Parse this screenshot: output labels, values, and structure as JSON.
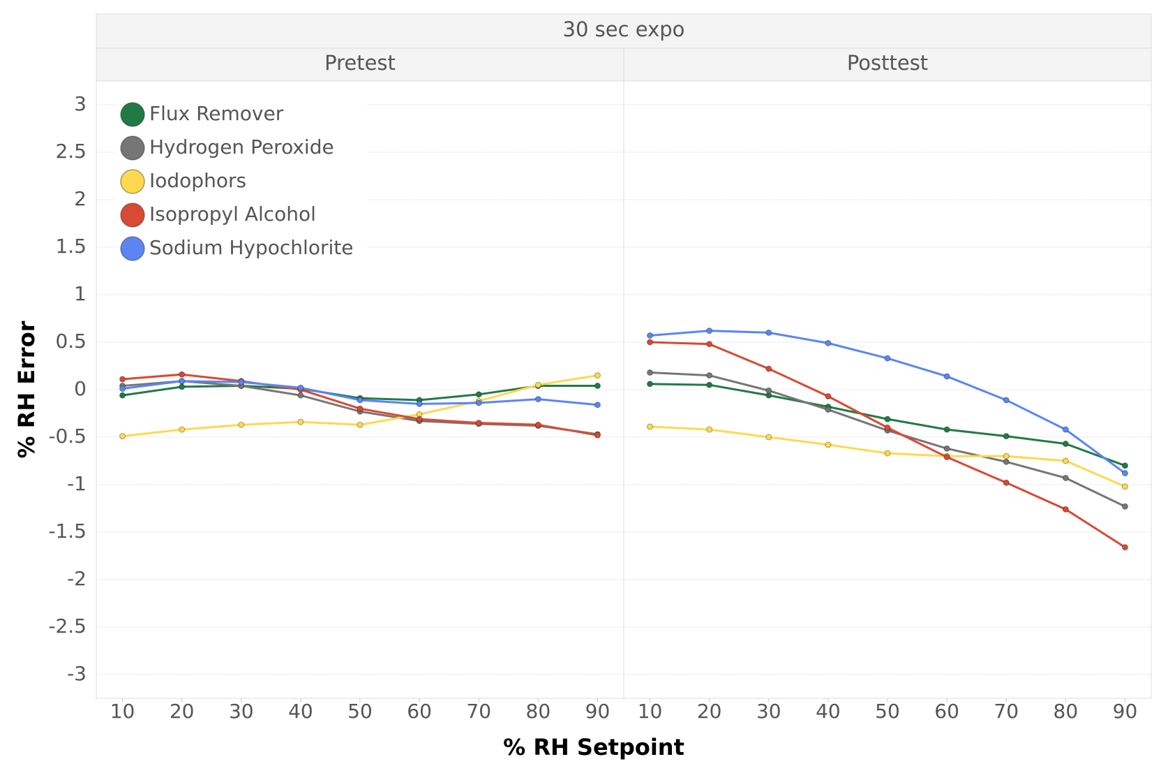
{
  "title": "30 sec expo",
  "xlabel": "% RH Setpoint",
  "ylabel": "% RH Error",
  "chart_data": [
    {
      "type": "line",
      "title": "Pretest",
      "x": [
        10,
        20,
        30,
        40,
        50,
        60,
        70,
        80,
        90
      ],
      "xlim": [
        7,
        93
      ],
      "xticks": [
        10,
        20,
        30,
        40,
        50,
        60,
        70,
        80,
        90
      ],
      "ylim": [
        -3.25,
        3.25
      ],
      "yticks": [
        -3,
        -2.5,
        -2,
        -1.5,
        -1,
        -0.5,
        0,
        0.5,
        1,
        1.5,
        2,
        2.5,
        3
      ],
      "grid": true,
      "legend": "top-left",
      "series": [
        {
          "name": "Flux Remover",
          "color": "#217a45",
          "values": [
            -0.06,
            0.03,
            0.04,
            0.01,
            -0.09,
            -0.11,
            -0.05,
            0.04,
            0.04
          ]
        },
        {
          "name": "Hydrogen Peroxide",
          "color": "#767676",
          "values": [
            0.04,
            0.09,
            0.04,
            -0.06,
            -0.23,
            -0.33,
            -0.36,
            -0.38,
            -0.47
          ]
        },
        {
          "name": "Iodophors",
          "color": "#fdd94f",
          "values": [
            -0.49,
            -0.42,
            -0.37,
            -0.34,
            -0.37,
            -0.26,
            -0.12,
            0.05,
            0.15
          ]
        },
        {
          "name": "Isopropyl Alcohol",
          "color": "#d84a33",
          "values": [
            0.11,
            0.16,
            0.09,
            0.0,
            -0.2,
            -0.31,
            -0.35,
            -0.37,
            -0.48
          ]
        },
        {
          "name": "Sodium Hypochlorite",
          "color": "#5b85f3",
          "values": [
            0.01,
            0.09,
            0.08,
            0.02,
            -0.11,
            -0.15,
            -0.14,
            -0.1,
            -0.16
          ]
        }
      ]
    },
    {
      "type": "line",
      "title": "Posttest",
      "x": [
        10,
        20,
        30,
        40,
        50,
        60,
        70,
        80,
        90
      ],
      "xlim": [
        7,
        93
      ],
      "xticks": [
        10,
        20,
        30,
        40,
        50,
        60,
        70,
        80,
        90
      ],
      "ylim": [
        -3.25,
        3.25
      ],
      "yticks": [
        -3,
        -2.5,
        -2,
        -1.5,
        -1,
        -0.5,
        0,
        0.5,
        1,
        1.5,
        2,
        2.5,
        3
      ],
      "grid": true,
      "series": [
        {
          "name": "Flux Remover",
          "color": "#217a45",
          "values": [
            0.06,
            0.05,
            -0.06,
            -0.18,
            -0.31,
            -0.42,
            -0.49,
            -0.57,
            -0.8
          ]
        },
        {
          "name": "Hydrogen Peroxide",
          "color": "#767676",
          "values": [
            0.18,
            0.15,
            -0.01,
            -0.21,
            -0.43,
            -0.62,
            -0.76,
            -0.93,
            -1.23
          ]
        },
        {
          "name": "Iodophors",
          "color": "#fdd94f",
          "values": [
            -0.39,
            -0.42,
            -0.5,
            -0.58,
            -0.67,
            -0.7,
            -0.7,
            -0.75,
            -1.02
          ]
        },
        {
          "name": "Isopropyl Alcohol",
          "color": "#d84a33",
          "values": [
            0.5,
            0.48,
            0.22,
            -0.07,
            -0.4,
            -0.71,
            -0.98,
            -1.26,
            -1.66
          ]
        },
        {
          "name": "Sodium Hypochlorite",
          "color": "#5b85f3",
          "values": [
            0.57,
            0.62,
            0.6,
            0.49,
            0.33,
            0.14,
            -0.11,
            -0.42,
            -0.88
          ]
        }
      ]
    }
  ]
}
